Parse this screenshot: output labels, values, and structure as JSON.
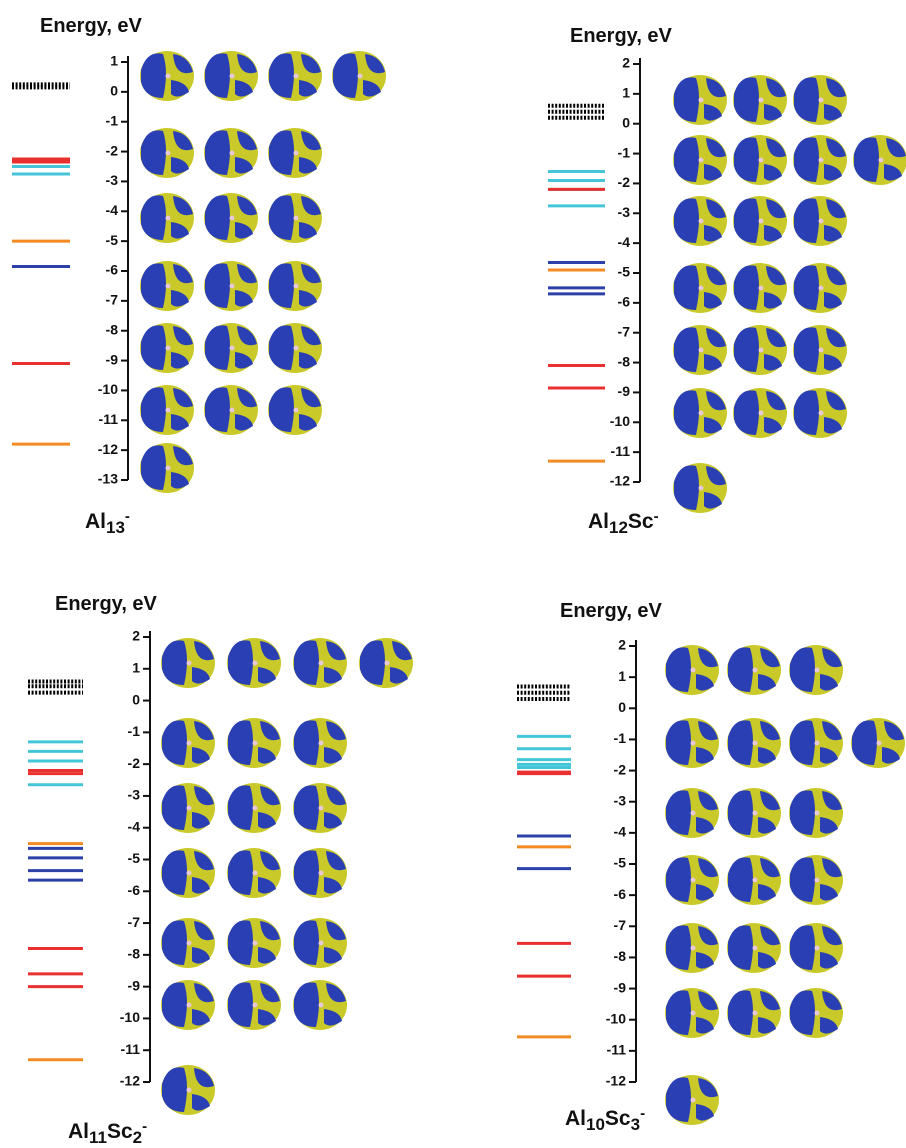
{
  "chart_data": [
    {
      "type": "levels",
      "title": "Energy, eV",
      "formula": [
        "Al",
        "13",
        "-"
      ],
      "formula_style": [
        "normal",
        "sub",
        "sup"
      ],
      "ylim": [
        -13,
        1
      ],
      "yticks": [
        1,
        0,
        -1,
        -2,
        -3,
        -4,
        -5,
        -6,
        -7,
        -8,
        -9,
        -10,
        -11,
        -12,
        -13
      ],
      "levels": [
        {
          "value": 0.25,
          "color": "#000000",
          "style": "dotted"
        },
        {
          "value": 0.15,
          "color": "#000000",
          "style": "dotted"
        },
        {
          "value": -2.25,
          "color": "#e8312f",
          "style": "solid"
        },
        {
          "value": -2.35,
          "color": "#e8312f",
          "style": "solid"
        },
        {
          "value": -2.5,
          "color": "#45c6d8",
          "style": "solid"
        },
        {
          "value": -2.75,
          "color": "#45c6d8",
          "style": "solid"
        },
        {
          "value": -5.0,
          "color": "#f48a22",
          "style": "solid"
        },
        {
          "value": -5.85,
          "color": "#2b40a8",
          "style": "solid"
        },
        {
          "value": -9.1,
          "color": "#e8312f",
          "style": "solid"
        },
        {
          "value": -11.8,
          "color": "#f48a22",
          "style": "solid"
        }
      ]
    },
    {
      "type": "levels",
      "title": "Energy, eV",
      "formula": [
        "Al",
        "12",
        "Sc",
        "-"
      ],
      "formula_style": [
        "normal",
        "sub",
        "normal",
        "sup"
      ],
      "ylim": [
        -12,
        2
      ],
      "yticks": [
        2,
        1,
        0,
        -1,
        -2,
        -3,
        -4,
        -5,
        -6,
        -7,
        -8,
        -9,
        -10,
        -11,
        -12
      ],
      "levels": [
        {
          "value": 0.6,
          "color": "#000000",
          "style": "dotted"
        },
        {
          "value": 0.4,
          "color": "#000000",
          "style": "dotted"
        },
        {
          "value": 0.2,
          "color": "#000000",
          "style": "dotted"
        },
        {
          "value": -1.6,
          "color": "#45c6d8",
          "style": "solid"
        },
        {
          "value": -1.9,
          "color": "#45c6d8",
          "style": "solid"
        },
        {
          "value": -2.2,
          "color": "#45c6d8",
          "style": "solid"
        },
        {
          "value": -2.2,
          "color": "#e8312f",
          "style": "solid"
        },
        {
          "value": -2.75,
          "color": "#45c6d8",
          "style": "solid"
        },
        {
          "value": -4.65,
          "color": "#2b40a8",
          "style": "solid"
        },
        {
          "value": -4.9,
          "color": "#f48a22",
          "style": "solid"
        },
        {
          "value": -5.5,
          "color": "#2b40a8",
          "style": "solid"
        },
        {
          "value": -5.7,
          "color": "#2b40a8",
          "style": "solid"
        },
        {
          "value": -8.1,
          "color": "#e8312f",
          "style": "solid"
        },
        {
          "value": -8.85,
          "color": "#e8312f",
          "style": "solid"
        },
        {
          "value": -11.3,
          "color": "#f48a22",
          "style": "solid"
        }
      ]
    },
    {
      "type": "levels",
      "title": "Energy, eV",
      "formula": [
        "Al",
        "11",
        "Sc",
        "2",
        "-"
      ],
      "formula_style": [
        "normal",
        "sub",
        "normal",
        "sub",
        "sup"
      ],
      "ylim": [
        -12,
        2
      ],
      "yticks": [
        2,
        1,
        0,
        -1,
        -2,
        -3,
        -4,
        -5,
        -6,
        -7,
        -8,
        -9,
        -10,
        -11,
        -12
      ],
      "levels": [
        {
          "value": 0.6,
          "color": "#000000",
          "style": "dotted"
        },
        {
          "value": 0.45,
          "color": "#000000",
          "style": "dotted"
        },
        {
          "value": 0.25,
          "color": "#000000",
          "style": "dotted"
        },
        {
          "value": -1.3,
          "color": "#45c6d8",
          "style": "solid"
        },
        {
          "value": -1.6,
          "color": "#45c6d8",
          "style": "solid"
        },
        {
          "value": -1.9,
          "color": "#45c6d8",
          "style": "solid"
        },
        {
          "value": -2.2,
          "color": "#e8312f",
          "style": "solid"
        },
        {
          "value": -2.3,
          "color": "#e8312f",
          "style": "solid"
        },
        {
          "value": -2.65,
          "color": "#45c6d8",
          "style": "solid"
        },
        {
          "value": -4.5,
          "color": "#f48a22",
          "style": "solid"
        },
        {
          "value": -4.65,
          "color": "#2b40a8",
          "style": "solid"
        },
        {
          "value": -4.95,
          "color": "#2b40a8",
          "style": "solid"
        },
        {
          "value": -5.35,
          "color": "#2b40a8",
          "style": "solid"
        },
        {
          "value": -5.65,
          "color": "#2b40a8",
          "style": "solid"
        },
        {
          "value": -7.8,
          "color": "#e8312f",
          "style": "solid"
        },
        {
          "value": -8.6,
          "color": "#e8312f",
          "style": "solid"
        },
        {
          "value": -9.0,
          "color": "#e8312f",
          "style": "solid"
        },
        {
          "value": -11.3,
          "color": "#f48a22",
          "style": "solid"
        }
      ]
    },
    {
      "type": "levels",
      "title": "Energy, eV",
      "formula": [
        "Al",
        "10",
        "Sc",
        "3",
        "-"
      ],
      "formula_style": [
        "normal",
        "sub",
        "normal",
        "sub",
        "sup"
      ],
      "ylim": [
        -12,
        2
      ],
      "yticks": [
        2,
        1,
        0,
        -1,
        -2,
        -3,
        -4,
        -5,
        -6,
        -7,
        -8,
        -9,
        -10,
        -11,
        -12
      ],
      "levels": [
        {
          "value": 0.7,
          "color": "#000000",
          "style": "dotted"
        },
        {
          "value": 0.5,
          "color": "#000000",
          "style": "dotted"
        },
        {
          "value": 0.3,
          "color": "#000000",
          "style": "dotted"
        },
        {
          "value": -0.9,
          "color": "#45c6d8",
          "style": "solid"
        },
        {
          "value": -1.3,
          "color": "#45c6d8",
          "style": "solid"
        },
        {
          "value": -1.65,
          "color": "#45c6d8",
          "style": "solid"
        },
        {
          "value": -1.8,
          "color": "#45c6d8",
          "style": "solid"
        },
        {
          "value": -1.9,
          "color": "#45c6d8",
          "style": "solid"
        },
        {
          "value": -2.05,
          "color": "#e8312f",
          "style": "solid"
        },
        {
          "value": -2.1,
          "color": "#e8312f",
          "style": "solid"
        },
        {
          "value": -4.1,
          "color": "#2b40a8",
          "style": "solid"
        },
        {
          "value": -4.45,
          "color": "#f48a22",
          "style": "solid"
        },
        {
          "value": -5.15,
          "color": "#2b40a8",
          "style": "solid"
        },
        {
          "value": -7.55,
          "color": "#e8312f",
          "style": "solid"
        },
        {
          "value": -8.6,
          "color": "#e8312f",
          "style": "solid"
        },
        {
          "value": -10.55,
          "color": "#f48a22",
          "style": "solid"
        }
      ]
    }
  ]
}
